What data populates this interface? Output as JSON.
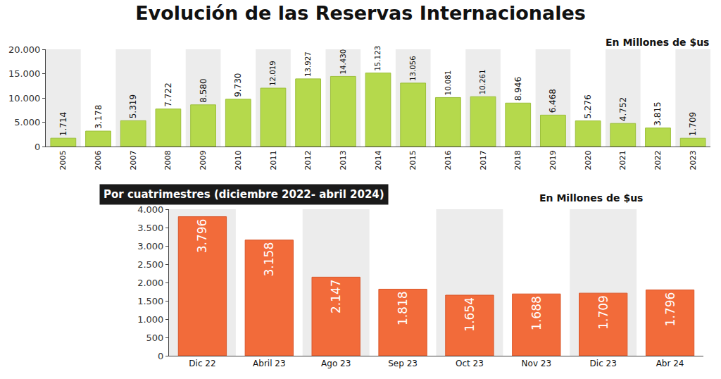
{
  "title": "Evolución de las Reservas Internacionales",
  "chart_data": [
    {
      "type": "bar",
      "subtitle": "En Millones de $us",
      "categories": [
        "2005",
        "2006",
        "2007",
        "2008",
        "2009",
        "2010",
        "2011",
        "2012",
        "2013",
        "2014",
        "2015",
        "2016",
        "2017",
        "2018",
        "2019",
        "2020",
        "2021",
        "2022",
        "2023"
      ],
      "values": [
        1714,
        3178,
        5319,
        7722,
        8580,
        9730,
        12019,
        13927,
        14430,
        15123,
        13056,
        10081,
        10261,
        8946,
        6468,
        5276,
        4752,
        3815,
        1709
      ],
      "value_labels": [
        "1.714",
        "3.178",
        "5.319",
        "7.722",
        "8.580",
        "9.730",
        "12.019",
        "13.927",
        "14.430",
        "15.123",
        "13.056",
        "10.081",
        "10.261",
        "8.946",
        "6.468",
        "5.276",
        "4.752",
        "3.815",
        "1.709"
      ],
      "color": "#b5d94c",
      "ylim": [
        0,
        20000
      ],
      "yticks": [
        0,
        {
          "value": 5000,
          "label": "5.000"
        },
        {
          "value": 10000,
          "label": "10.000"
        },
        {
          "value": 15000,
          "label": "15.000"
        },
        {
          "value": 20000,
          "label": "20.000"
        }
      ],
      "grid": false,
      "data_labels": true
    },
    {
      "type": "bar",
      "title": "Por cuatrimestres (diciembre 2022- abril 2024)",
      "subtitle": "En Millones de $us",
      "categories": [
        "Dic 22",
        "Abril 23",
        "Ago 23",
        "Sep 23",
        "Oct 23",
        "Nov 23",
        "Dic 23",
        "Abr 24"
      ],
      "values": [
        3796,
        3158,
        2147,
        1818,
        1654,
        1688,
        1709,
        1796
      ],
      "value_labels": [
        "3.796",
        "3.158",
        "2.147",
        "1.818",
        "1.654",
        "1.688",
        "1.709",
        "1.796"
      ],
      "color": "#f26b3a",
      "ylim": [
        0,
        4000
      ],
      "yticks": [
        0,
        500,
        {
          "value": 1000,
          "label": "1.000"
        },
        {
          "value": 1500,
          "label": "1.500"
        },
        {
          "value": 2000,
          "label": "2.000"
        },
        {
          "value": 2500,
          "label": "2.500"
        },
        {
          "value": 3000,
          "label": "3.000"
        },
        {
          "value": 3500,
          "label": "3.500"
        },
        {
          "value": 4000,
          "label": "4.000"
        }
      ],
      "grid": false,
      "data_labels": true
    }
  ]
}
